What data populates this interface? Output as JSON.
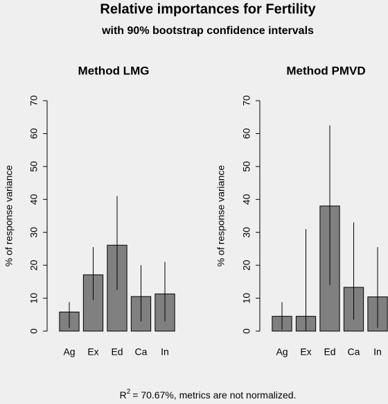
{
  "title": "Relative importances for Fertility",
  "subtitle": "with 90% bootstrap confidence intervals",
  "footnote": [
    "R",
    "2",
    "= 70.67%, metrics are not normalized."
  ],
  "chart_data": [
    {
      "type": "bar",
      "title": "Method LMG",
      "ylabel": "% of response variance",
      "categories": [
        "Ag",
        "Ex",
        "Ed",
        "Ca",
        "In"
      ],
      "values": [
        5.8,
        17.1,
        26.1,
        10.5,
        11.3
      ],
      "ci_lower": [
        1.0,
        9.5,
        12.5,
        3.0,
        3.0
      ],
      "ci_upper": [
        8.8,
        25.5,
        41.0,
        20.0,
        21.0
      ],
      "color": "#808080",
      "ylim": [
        0,
        70
      ],
      "yticks": [
        0,
        10,
        20,
        30,
        40,
        50,
        60,
        70
      ]
    },
    {
      "type": "bar",
      "title": "Method PMVD",
      "ylabel": "% of response variance",
      "categories": [
        "Ag",
        "Ex",
        "Ed",
        "Ca",
        "In"
      ],
      "values": [
        4.5,
        4.5,
        38.0,
        13.3,
        10.4
      ],
      "ci_lower": [
        0.5,
        0.0,
        14.0,
        3.5,
        1.0
      ],
      "ci_upper": [
        8.8,
        31.0,
        62.5,
        33.0,
        25.5
      ],
      "color": "#808080",
      "ylim": [
        0,
        70
      ],
      "yticks": [
        0,
        10,
        20,
        30,
        40,
        50,
        60,
        70
      ]
    }
  ]
}
